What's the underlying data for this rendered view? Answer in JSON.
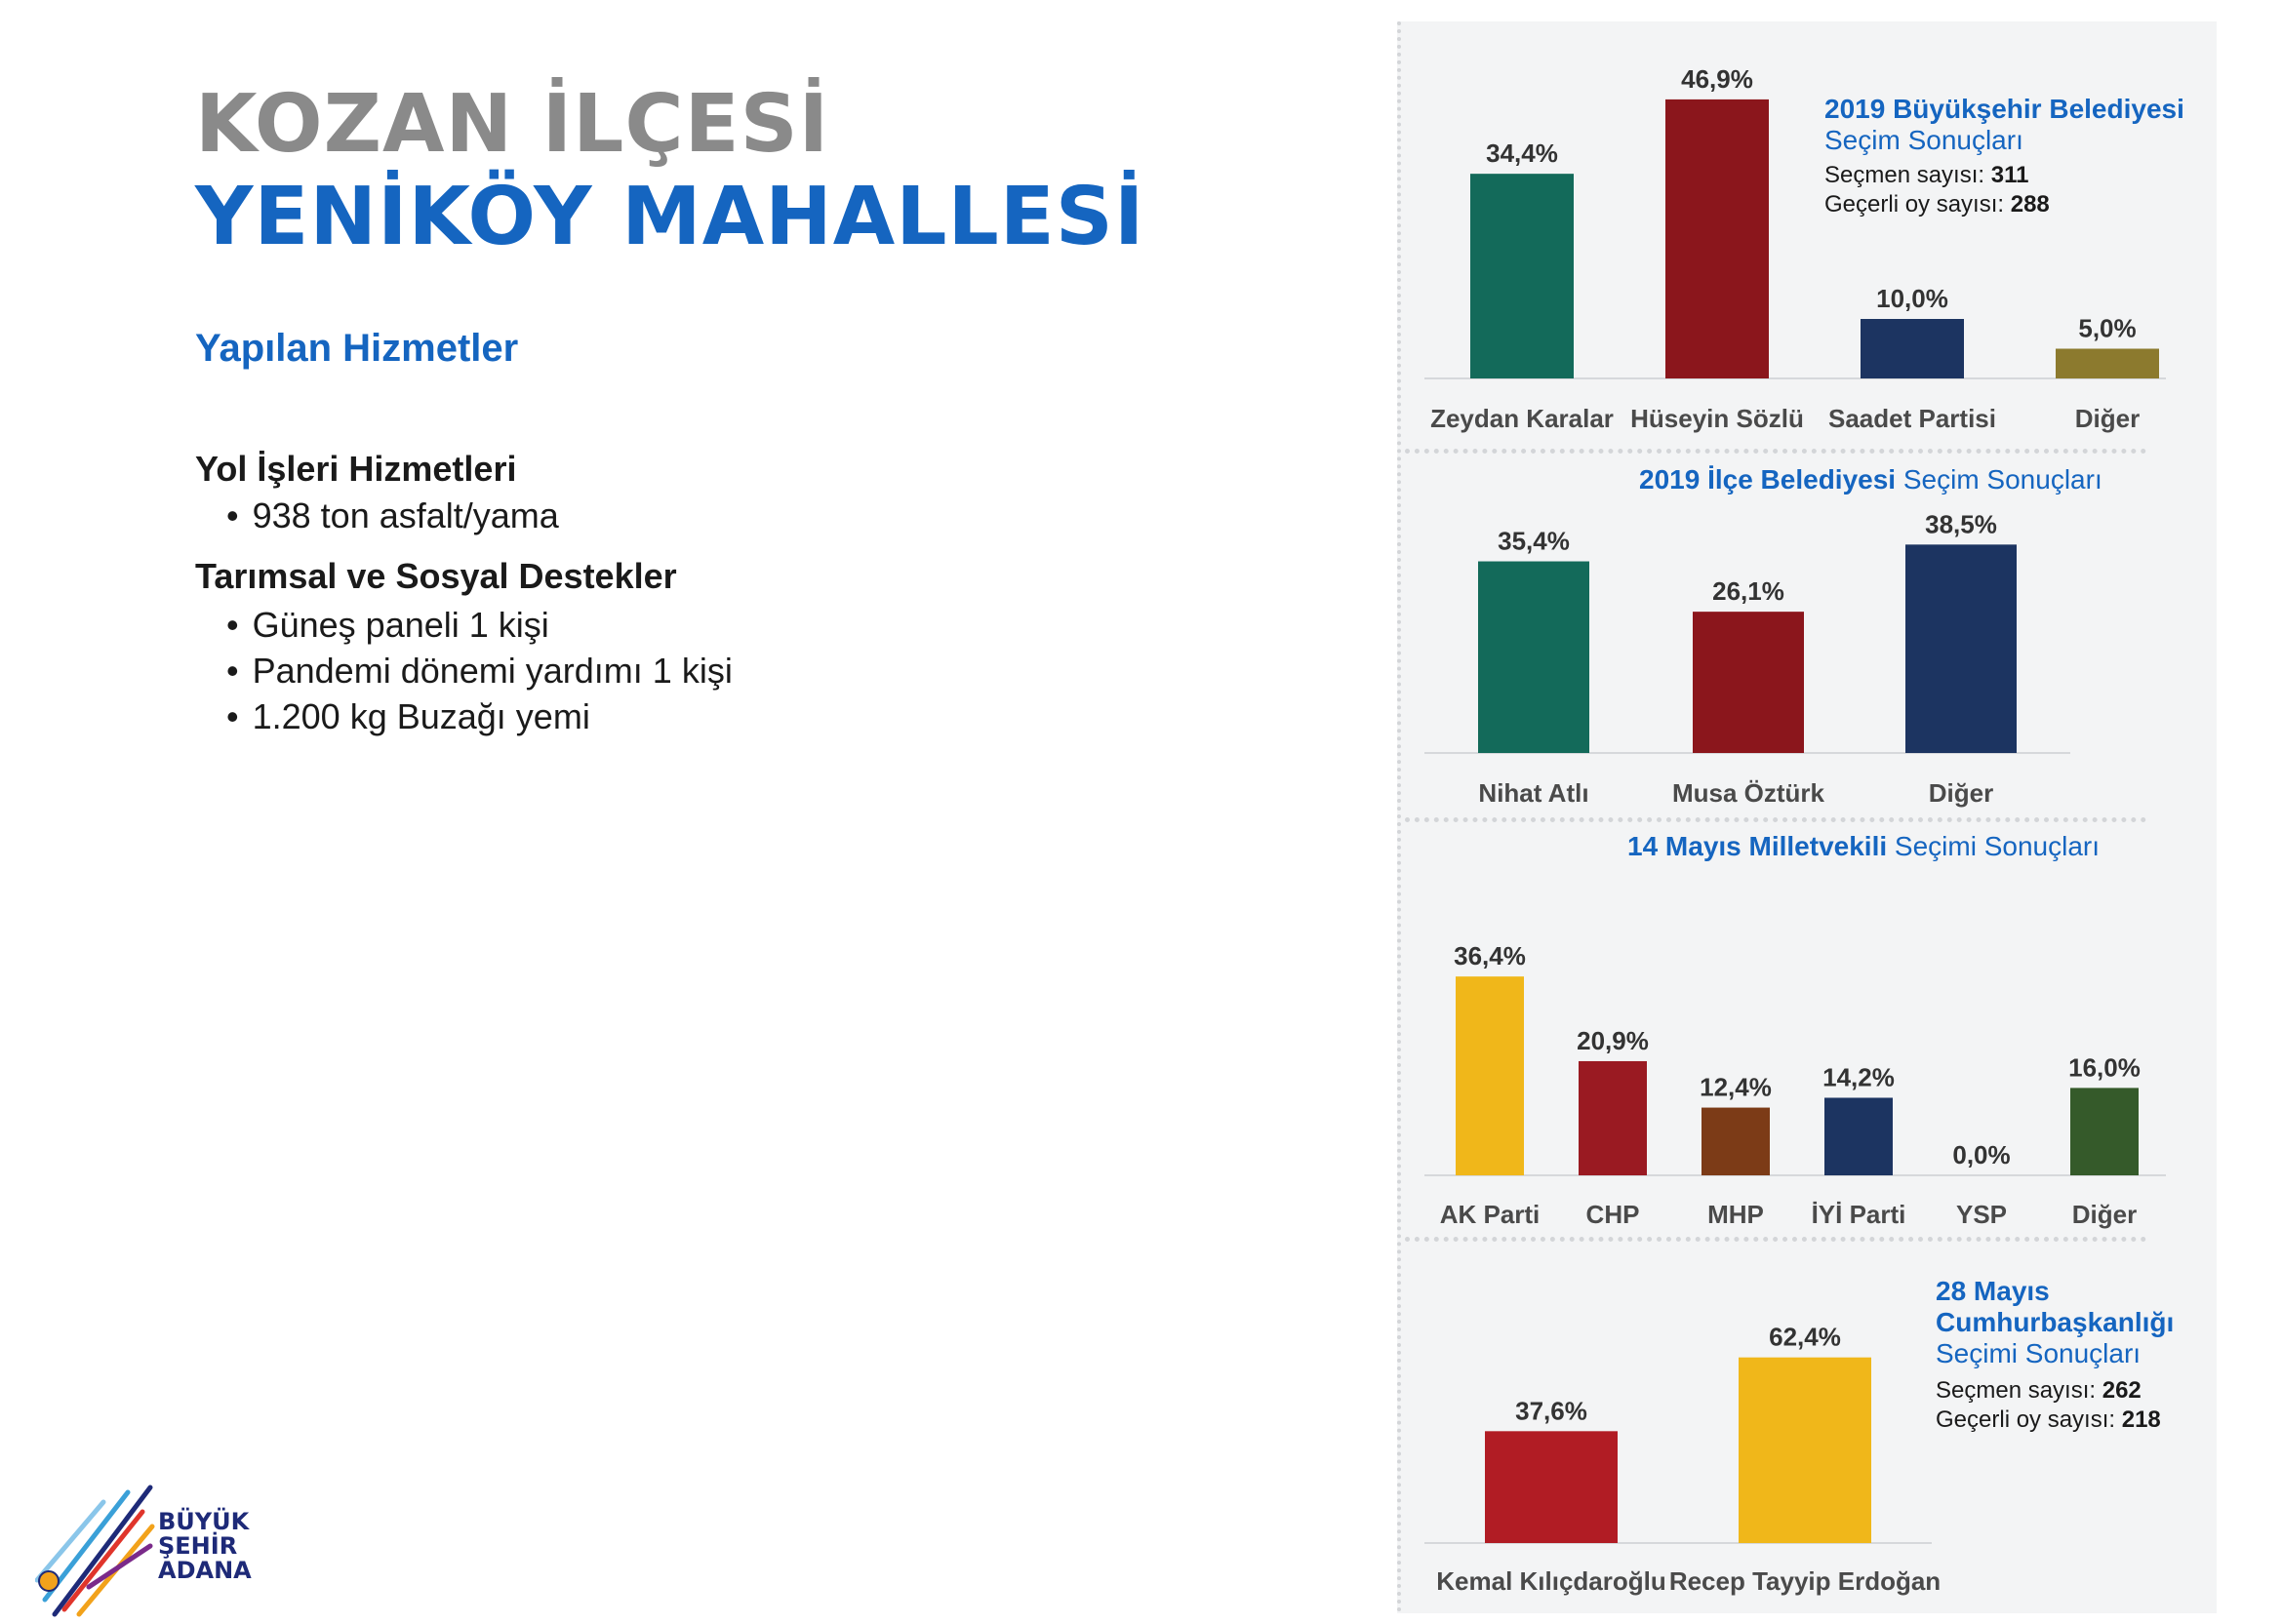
{
  "header": {
    "title_line1": "KOZAN İLÇESİ",
    "title_line2": "YENİKÖY MAHALLESİ",
    "subheading": "Yapılan Hizmetler"
  },
  "services": [
    {
      "heading": "Yol İşleri Hizmetleri",
      "items": [
        "938 ton asfalt/yama"
      ]
    },
    {
      "heading": "Tarımsal ve Sosyal Destekler",
      "items": [
        "Güneş paneli 1 kişi",
        "Pandemi dönemi yardımı 1 kişi",
        "1.200 kg Buzağı yemi"
      ]
    }
  ],
  "logo": {
    "line1": "BÜYÜK",
    "line2": "ŞEHİR",
    "line3": "ADANA"
  },
  "annotations": {
    "c1": {
      "title": "2019 Büyükşehir Belediyesi",
      "subtitle": "Seçim Sonuçları",
      "voters_label": "Seçmen sayısı:",
      "voters": "311",
      "valid_label": "Geçerli oy sayısı:",
      "valid": "288"
    },
    "c2": {
      "title_strong": "2019 İlçe Belediyesi",
      "title_rest": "Seçim Sonuçları"
    },
    "c3": {
      "title_strong": "14 Mayıs Milletvekili",
      "title_rest": "Seçimi Sonuçları"
    },
    "c4": {
      "title1": "28 Mayıs",
      "title2": "Cumhurbaşkanlığı",
      "subtitle": "Seçimi Sonuçları",
      "voters_label": "Seçmen sayısı:",
      "voters": "262",
      "valid_label": "Geçerli oy sayısı:",
      "valid": "218"
    }
  },
  "chart_data": [
    {
      "type": "bar",
      "title": "2019 Büyükşehir Belediyesi Seçim Sonuçları",
      "categories": [
        "Zeydan Karalar",
        "Hüseyin Sözlü",
        "Saadet Partisi",
        "Diğer"
      ],
      "values": [
        34.4,
        46.9,
        10.0,
        5.0
      ],
      "labels": [
        "34,4%",
        "46,9%",
        "10,0%",
        "5,0%"
      ],
      "colors": [
        "#136a5a",
        "#8b161c",
        "#1c3461",
        "#8c7a2e"
      ]
    },
    {
      "type": "bar",
      "title": "2019 İlçe Belediyesi Seçim Sonuçları",
      "categories": [
        "Nihat Atlı",
        "Musa Öztürk",
        "Diğer"
      ],
      "values": [
        35.4,
        26.1,
        38.5
      ],
      "labels": [
        "35,4%",
        "26,1%",
        "38,5%"
      ],
      "colors": [
        "#136a5a",
        "#8b161c",
        "#1c3461"
      ]
    },
    {
      "type": "bar",
      "title": "14 Mayıs Milletvekili Seçimi Sonuçları",
      "categories": [
        "AK Parti",
        "CHP",
        "MHP",
        "İYİ Parti",
        "YSP",
        "Diğer"
      ],
      "values": [
        36.4,
        20.9,
        12.4,
        14.2,
        0.0,
        16.0
      ],
      "labels": [
        "36,4%",
        "20,9%",
        "12,4%",
        "14,2%",
        "0,0%",
        "16,0%"
      ],
      "colors": [
        "#f0b71a",
        "#9a1a22",
        "#7c3b17",
        "#1c3461",
        "#888888",
        "#355a2a"
      ]
    },
    {
      "type": "bar",
      "title": "28 Mayıs Cumhurbaşkanlığı Seçimi Sonuçları",
      "categories": [
        "Kemal Kılıçdaroğlu",
        "Recep Tayyip Erdoğan"
      ],
      "values": [
        37.6,
        62.4
      ],
      "labels": [
        "37,6%",
        "62,4%"
      ],
      "colors": [
        "#b11c24",
        "#f0b71a"
      ]
    }
  ]
}
